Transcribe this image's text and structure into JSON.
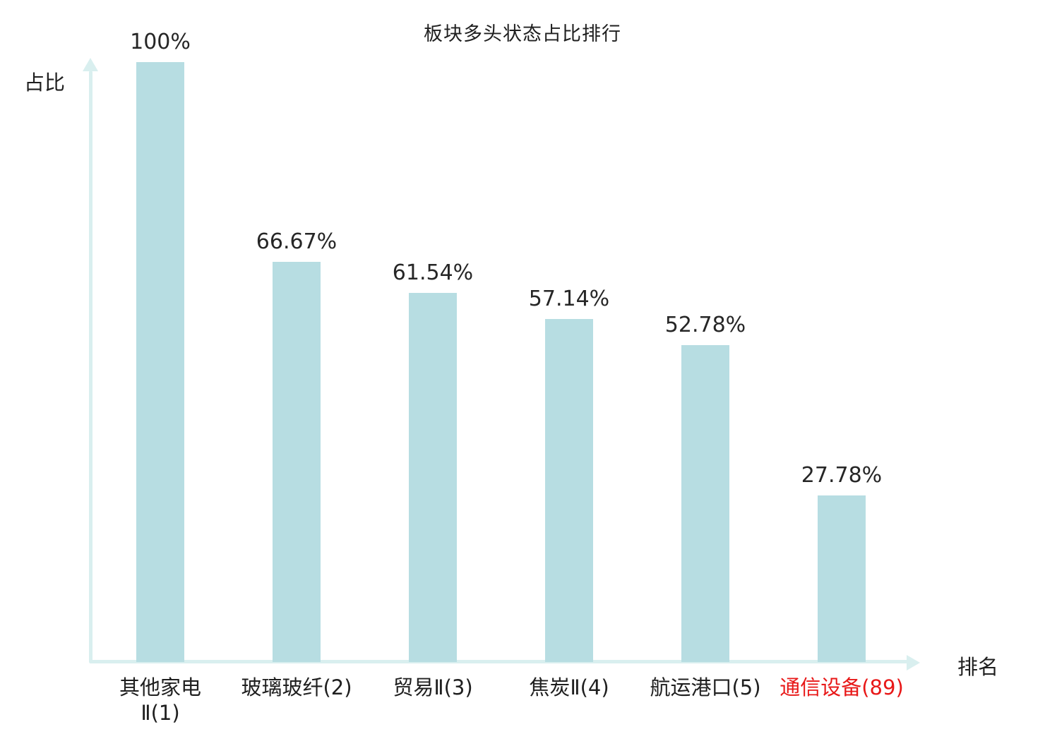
{
  "title": "板块多头状态占比排行",
  "axes": {
    "y_label": "占比",
    "x_label": "排名"
  },
  "colors": {
    "bar": "#b7dde2",
    "axis": "#d9efef",
    "text": "#1f1f1f",
    "highlight": "#e81818"
  },
  "chart_data": {
    "type": "bar",
    "title": "板块多头状态占比排行",
    "xlabel": "排名",
    "ylabel": "占比",
    "ylim": [
      0,
      100
    ],
    "grid": false,
    "legend": "none",
    "categories": [
      "其他家电\nⅡ(1)",
      "玻璃玻纤(2)",
      "贸易Ⅱ(3)",
      "焦炭Ⅱ(4)",
      "航运港口(5)",
      "通信设备(89)"
    ],
    "values": [
      100,
      66.67,
      61.54,
      57.14,
      52.78,
      27.78
    ],
    "value_labels": [
      "100%",
      "66.67%",
      "61.54%",
      "57.14%",
      "52.78%",
      "27.78%"
    ],
    "highlight_index": 5
  }
}
